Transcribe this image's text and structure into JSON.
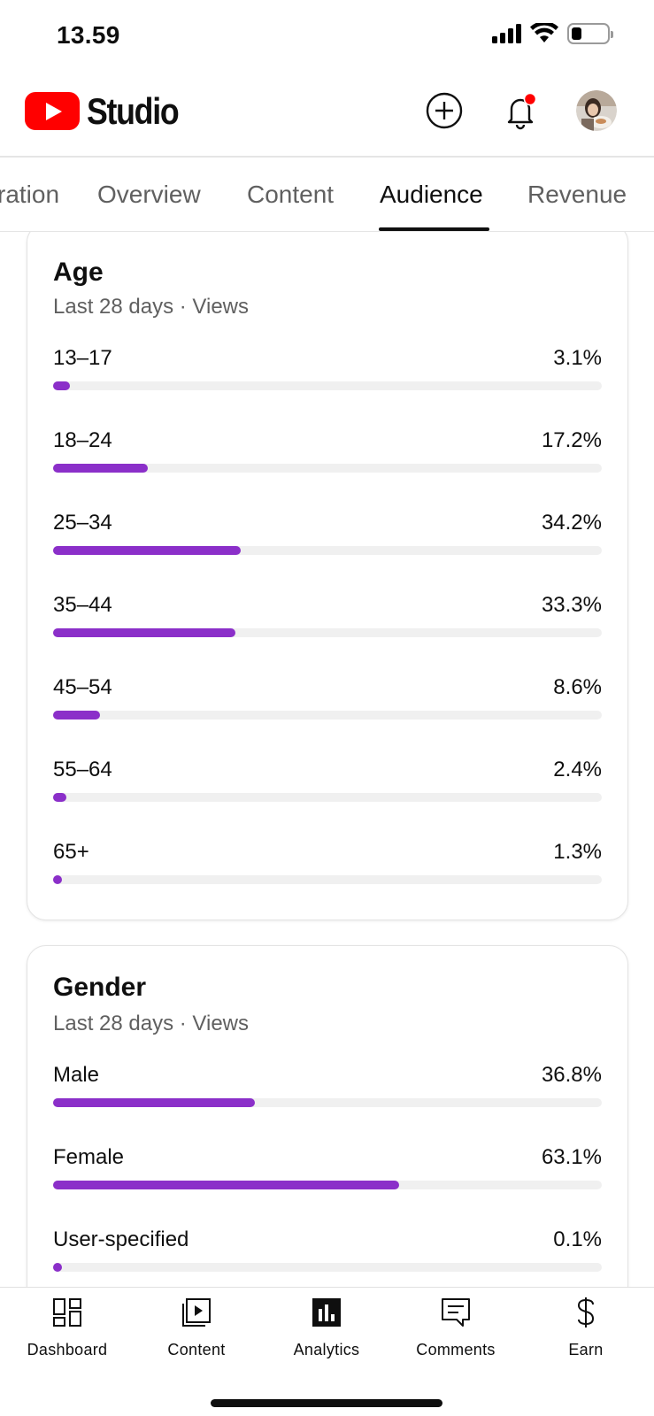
{
  "status_bar": {
    "time": "13.59"
  },
  "header": {
    "logo_text": "Studio",
    "icons": {
      "create": "plus-circle-icon",
      "notifications": "bell-icon",
      "avatar": "avatar"
    },
    "notification_dot_color": "#ff0000"
  },
  "tabs": [
    {
      "label": "ration",
      "active": false
    },
    {
      "label": "Overview",
      "active": false
    },
    {
      "label": "Content",
      "active": false
    },
    {
      "label": "Audience",
      "active": true
    },
    {
      "label": "Revenue",
      "active": false
    }
  ],
  "colors": {
    "bar_fill": "#8b2fc9",
    "bar_track": "#f0f0f0"
  },
  "age_card": {
    "title": "Age",
    "subtitle": "Last 28 days · Views",
    "rows": [
      {
        "label": "13–17",
        "value": "3.1%",
        "percent": 3.1
      },
      {
        "label": "18–24",
        "value": "17.2%",
        "percent": 17.2
      },
      {
        "label": "25–34",
        "value": "34.2%",
        "percent": 34.2
      },
      {
        "label": "35–44",
        "value": "33.3%",
        "percent": 33.3
      },
      {
        "label": "45–54",
        "value": "8.6%",
        "percent": 8.6
      },
      {
        "label": "55–64",
        "value": "2.4%",
        "percent": 2.4
      },
      {
        "label": "65+",
        "value": "1.3%",
        "percent": 1.3
      }
    ]
  },
  "gender_card": {
    "title": "Gender",
    "subtitle": "Last 28 days · Views",
    "rows": [
      {
        "label": "Male",
        "value": "36.8%",
        "percent": 36.8
      },
      {
        "label": "Female",
        "value": "63.1%",
        "percent": 63.1
      },
      {
        "label": "User-specified",
        "value": "0.1%",
        "percent": 0.1
      }
    ]
  },
  "bottom_nav": [
    {
      "label": "Dashboard",
      "icon": "dashboard-icon",
      "active": false
    },
    {
      "label": "Content",
      "icon": "content-icon",
      "active": false
    },
    {
      "label": "Analytics",
      "icon": "analytics-icon",
      "active": true
    },
    {
      "label": "Comments",
      "icon": "comments-icon",
      "active": false
    },
    {
      "label": "Earn",
      "icon": "dollar-icon",
      "active": false
    }
  ]
}
